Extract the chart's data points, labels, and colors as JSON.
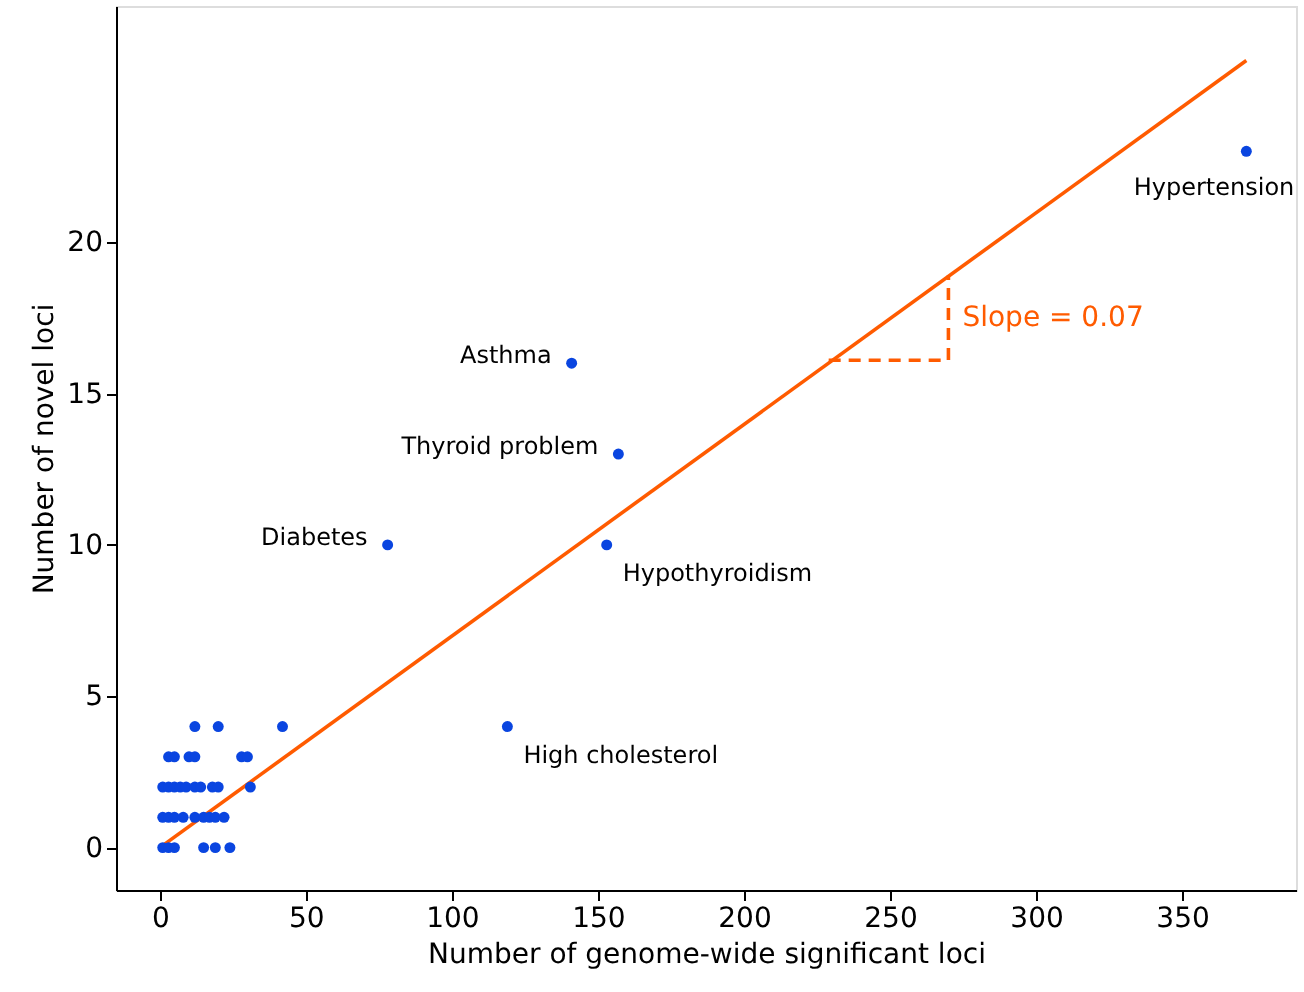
{
  "chart_data": {
    "type": "scatter",
    "xlabel": "Number of genome-wide significant loci",
    "ylabel": "Number of novel loci",
    "xlim": [
      -15,
      389
    ],
    "ylim": [
      -1.4,
      27.8
    ],
    "xticks": [
      0,
      50,
      100,
      150,
      200,
      250,
      300,
      350
    ],
    "yticks": [
      0,
      5,
      10,
      15,
      20
    ],
    "grid": false,
    "series": [
      {
        "type": "line",
        "color": "#ff5b00",
        "line_style": "solid",
        "x": [
          0,
          372
        ],
        "values": [
          0,
          26
        ]
      },
      {
        "type": "line",
        "name": "Slope = 0.07",
        "color": "#ff5b00",
        "line_style": "dashed",
        "x": [
          229,
          270,
          270
        ],
        "values": [
          16.1,
          16.1,
          18.9
        ]
      },
      {
        "marker": "circle",
        "color": "#0a45e0",
        "x": [
          372,
          141,
          157,
          78,
          153,
          119,
          12,
          20,
          42,
          3,
          5,
          10,
          12,
          28,
          30,
          1,
          3,
          5,
          7,
          9,
          12,
          14,
          18,
          20,
          31,
          1,
          3,
          5,
          8,
          12,
          15,
          17,
          19,
          22,
          1,
          3,
          5,
          15,
          19,
          24
        ],
        "values": [
          23,
          16,
          13,
          10,
          10,
          4,
          4,
          4,
          4,
          3,
          3,
          3,
          3,
          3,
          3,
          2,
          2,
          2,
          2,
          2,
          2,
          2,
          2,
          2,
          2,
          1,
          1,
          1,
          1,
          1,
          1,
          1,
          1,
          1,
          0,
          0,
          0,
          0,
          0,
          0
        ]
      }
    ],
    "annotations": [
      {
        "text": "Hypertension",
        "x": 372,
        "y": 23
      },
      {
        "text": "Asthma",
        "x": 141,
        "y": 16
      },
      {
        "text": "Thyroid problem",
        "x": 157,
        "y": 13
      },
      {
        "text": "Diabetes",
        "x": 78,
        "y": 10
      },
      {
        "text": "Hypothyroidism",
        "x": 153,
        "y": 10
      },
      {
        "text": "High cholesterol",
        "x": 119,
        "y": 4
      }
    ]
  }
}
